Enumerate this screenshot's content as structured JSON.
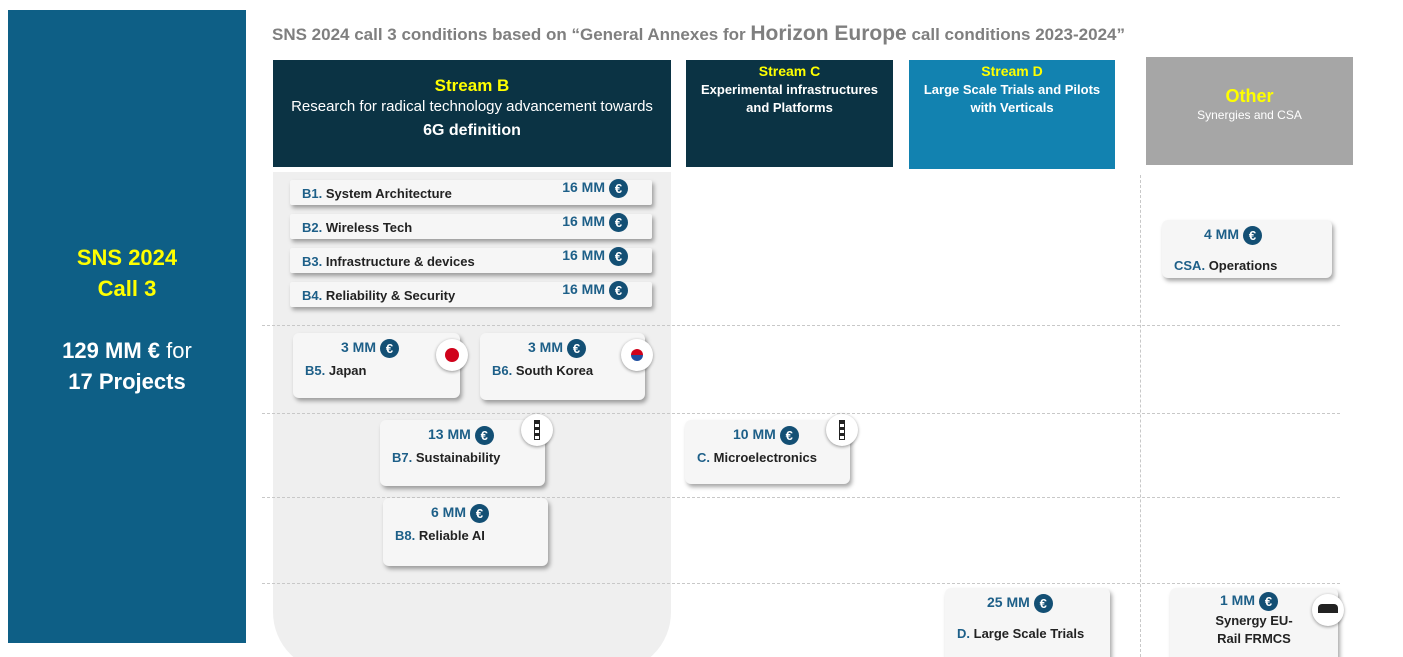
{
  "title": {
    "before": "SNS 2024 call 3 conditions based on “General Annexes for",
    "emphasis": "Horizon  Europe",
    "after": "call conditions 2023-2024”"
  },
  "summary": {
    "line1": "SNS 2024",
    "line2": "Call 3",
    "budget": "129 MM €",
    "budget_suffix": "for",
    "projects": "17 Projects"
  },
  "currency": "€",
  "streams": [
    {
      "name": "Stream B",
      "description": "Research for radical technology advancement towards",
      "emphasis": "6G definition"
    },
    {
      "name": "Stream C",
      "description": "Experimental infrastructures and Platforms"
    },
    {
      "name": "Stream D",
      "description": "Large Scale Trials and Pilots with Verticals"
    },
    {
      "name": "Other",
      "description": "Synergies and CSA"
    }
  ],
  "topics": [
    {
      "code": "B1.",
      "name": "System Architecture",
      "amount": "16 MM"
    },
    {
      "code": "B2.",
      "name": "Wireless Tech",
      "amount": "16 MM"
    },
    {
      "code": "B3.",
      "name": "Infrastructure & devices",
      "amount": "16 MM"
    },
    {
      "code": "B4.",
      "name": "Reliability & Security",
      "amount": "16 MM"
    },
    {
      "code": "B5.",
      "name": "Japan",
      "amount": "3 MM"
    },
    {
      "code": "B6.",
      "name": "South Korea",
      "amount": "3 MM"
    },
    {
      "code": "B7.",
      "name": "Sustainability",
      "amount": "13 MM"
    },
    {
      "code": "C.",
      "name": "Microelectronics",
      "amount": "10 MM"
    },
    {
      "code": "B8.",
      "name": "Reliable AI",
      "amount": "6 MM"
    },
    {
      "code": "D.",
      "name": "Large Scale Trials",
      "amount": "25 MM"
    },
    {
      "code": "CSA.",
      "name": "Operations",
      "amount": "4 MM"
    },
    {
      "code": "",
      "name": "Synergy EU-Rail FRMCS",
      "amount": "1 MM"
    }
  ]
}
